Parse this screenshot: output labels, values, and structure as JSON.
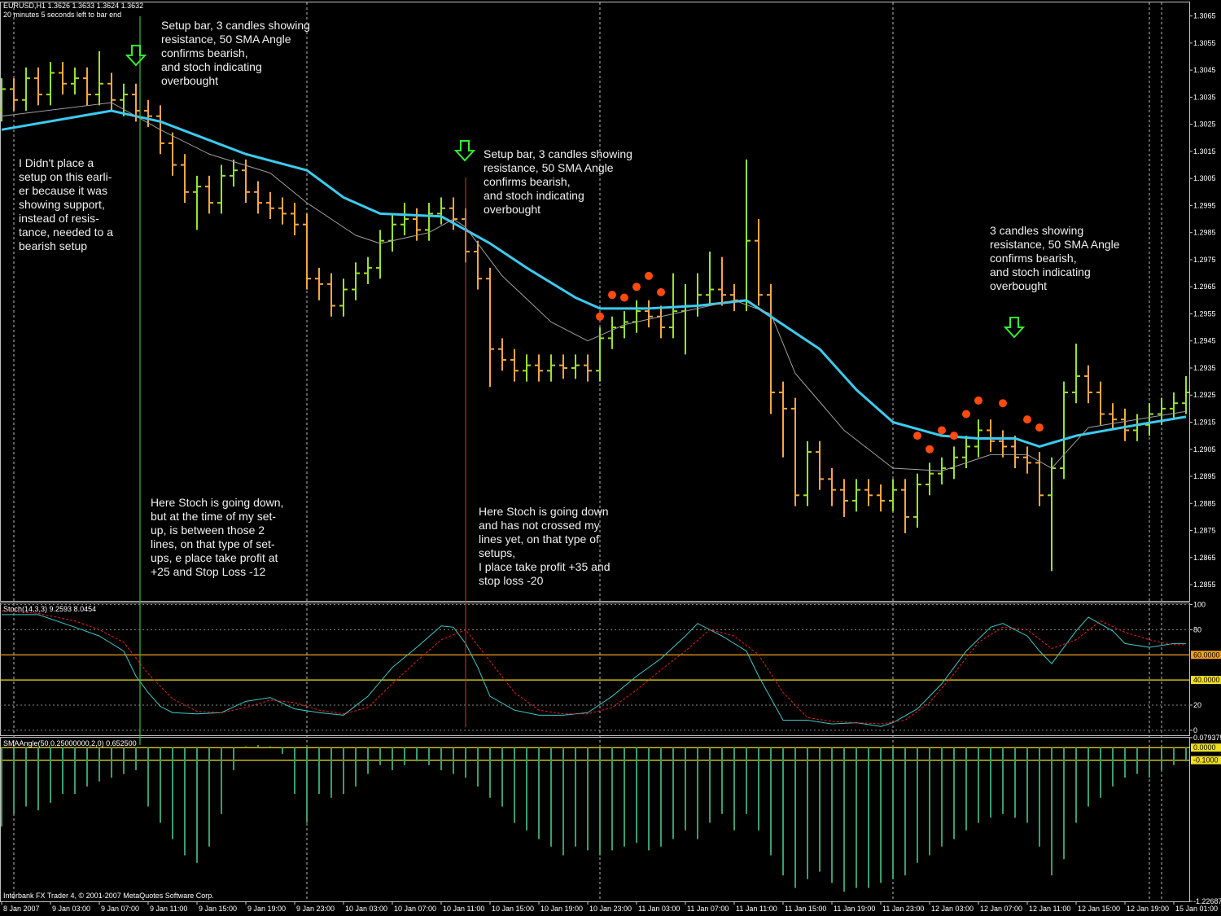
{
  "header": {
    "symbol_line": "EURUSD,H1  1.3626 1.3633 1.3624 1.3632",
    "timer": "20 minutes 5 seconds left to bar end"
  },
  "footer": "Interbank FX Trader 4, © 2001-2007 MetaQuotes Software Corp.",
  "annotations": [
    {
      "lines": [
        "Setup bar, 3 candles showing",
        "resistance, 50 SMA Angle",
        "confirms bearish,",
        "and stoch indicating",
        "overbought"
      ]
    },
    {
      "lines": [
        "I Didn't place a",
        "setup on this earli-",
        "er because it was",
        "showing support,",
        "instead of resis-",
        "tance, needed to a",
        "bearish setup"
      ]
    },
    {
      "lines": [
        "Setup bar, 3 candles showing",
        "resistance, 50 SMA Angle",
        "confirms bearish,",
        "and stoch indicating",
        "overbought"
      ]
    },
    {
      "lines": [
        " 3 candles showing",
        " resistance, 50 SMA Angle",
        "confirms bearish,",
        "and stoch indicating",
        "overbought"
      ]
    },
    {
      "lines": [
        "Here Stoch is going down,",
        "but at the time of my set-",
        "up, is between those 2",
        "lines, on that type of set-",
        "ups, e place take profit at",
        "+25 and Stop Loss -12"
      ]
    },
    {
      "lines": [
        "Here Stoch is going down",
        "and has not crossed my",
        "lines yet, on that type of",
        "setups,",
        "I place take profit +35 and",
        "stop loss -20"
      ]
    }
  ],
  "chart_data": [
    {
      "type": "ohlc",
      "up_color": "#9be22a",
      "down_color": "#f5a742",
      "categories": [
        "8 Jan 2007",
        null,
        null,
        null,
        "9 Jan 03:00",
        null,
        null,
        null,
        "9 Jan 07:00",
        null,
        null,
        null,
        "9 Jan 11:00",
        null,
        null,
        null,
        "9 Jan 15:00",
        null,
        null,
        null,
        "9 Jan 19:00",
        null,
        null,
        null,
        "9 Jan 23:00",
        null,
        null,
        null,
        "10 Jan 03:00",
        null,
        null,
        null,
        "10 Jan 07:00",
        null,
        null,
        null,
        "10 Jan 11:00",
        null,
        null,
        null,
        "10 Jan 15:00",
        null,
        null,
        null,
        "10 Jan 19:00",
        null,
        null,
        null,
        "10 Jan 23:00",
        null,
        null,
        null,
        "11 Jan 03:00",
        null,
        null,
        null,
        "11 Jan 07:00",
        null,
        null,
        null,
        "11 Jan 11:00",
        null,
        null,
        null,
        "11 Jan 15:00",
        null,
        null,
        null,
        "11 Jan 19:00",
        null,
        null,
        null,
        "11 Jan 23:00",
        null,
        null,
        null,
        "12 Jan 03:00",
        null,
        null,
        null,
        "12 Jan 07:00",
        null,
        null,
        null,
        "12 Jan 11:00",
        null,
        null,
        null,
        "12 Jan 15:00",
        null,
        null,
        null,
        "12 Jan 19:00",
        null,
        null,
        null,
        "15 Jan 01:00",
        null
      ],
      "open": [
        1.303,
        1.3038,
        1.3034,
        1.3042,
        1.3036,
        1.3044,
        1.304,
        1.3042,
        1.3036,
        1.304,
        1.3034,
        1.3036,
        1.303,
        1.3028,
        1.3018,
        1.301,
        1.3,
        1.3002,
        1.2996,
        1.3006,
        1.3008,
        1.3,
        1.2996,
        1.2994,
        1.2992,
        1.2988,
        1.2968,
        1.2966,
        1.2958,
        1.2964,
        1.297,
        1.2972,
        1.2982,
        1.2988,
        1.299,
        1.2986,
        1.2992,
        1.2994,
        1.299,
        1.2978,
        1.2968,
        1.2942,
        1.2938,
        1.2934,
        1.2936,
        1.2934,
        1.2936,
        1.2935,
        1.2936,
        1.2934,
        1.2946,
        1.295,
        1.2952,
        1.2956,
        1.2954,
        1.295,
        1.2956,
        1.2958,
        1.2962,
        1.2964,
        1.2962,
        1.296,
        1.2982,
        1.2962,
        1.2926,
        1.292,
        1.2888,
        1.2904,
        1.2894,
        1.289,
        1.2886,
        1.289,
        1.2888,
        1.2886,
        1.289,
        1.288,
        1.2892,
        1.2896,
        1.2898,
        1.2902,
        1.2906,
        1.2912,
        1.2908,
        1.2906,
        1.2902,
        1.29,
        1.2888,
        1.2898,
        1.2926,
        1.2932,
        1.2926,
        1.2918,
        1.2916,
        1.2912,
        1.2914,
        1.2918,
        1.292,
        1.2922
      ],
      "high": [
        1.3042,
        1.3042,
        1.3046,
        1.3046,
        1.3048,
        1.3048,
        1.3046,
        1.3046,
        1.3052,
        1.3044,
        1.304,
        1.304,
        1.3034,
        1.3032,
        1.3022,
        1.3014,
        1.3006,
        1.3006,
        1.301,
        1.3012,
        1.3012,
        1.3004,
        1.3,
        1.2998,
        1.2996,
        1.2992,
        1.2972,
        1.297,
        1.2968,
        1.2974,
        1.2976,
        1.2986,
        1.2992,
        1.2996,
        1.2994,
        1.2996,
        1.2998,
        1.2998,
        1.2994,
        1.2982,
        1.2972,
        1.2946,
        1.2942,
        1.294,
        1.294,
        1.294,
        1.294,
        1.294,
        1.294,
        1.295,
        1.2954,
        1.2956,
        1.296,
        1.296,
        1.2958,
        1.297,
        1.2966,
        1.297,
        1.2978,
        1.2976,
        1.2966,
        1.3012,
        1.299,
        1.2966,
        1.293,
        1.2924,
        1.2908,
        1.2908,
        1.2898,
        1.2894,
        1.2894,
        1.2894,
        1.2892,
        1.2894,
        1.2894,
        1.2896,
        1.29,
        1.2902,
        1.2906,
        1.291,
        1.2916,
        1.2916,
        1.2912,
        1.291,
        1.2906,
        1.2904,
        1.2902,
        1.293,
        1.2944,
        1.2936,
        1.293,
        1.2922,
        1.292,
        1.2918,
        1.2922,
        1.2924,
        1.2926,
        1.2932
      ],
      "low": [
        1.3026,
        1.303,
        1.303,
        1.3032,
        1.3032,
        1.3036,
        1.3036,
        1.3032,
        1.3032,
        1.303,
        1.3028,
        1.3026,
        1.3024,
        1.3014,
        1.3006,
        1.2996,
        1.2986,
        1.2992,
        1.2992,
        1.3002,
        1.2996,
        1.2992,
        1.299,
        1.2988,
        1.2984,
        1.2964,
        1.296,
        1.2954,
        1.2954,
        1.296,
        1.2966,
        1.2968,
        1.2978,
        1.2984,
        1.2982,
        1.2982,
        1.2988,
        1.2986,
        1.2974,
        1.2964,
        1.2928,
        1.2934,
        1.293,
        1.293,
        1.293,
        1.293,
        1.2931,
        1.2931,
        1.293,
        1.293,
        1.2942,
        1.2946,
        1.2948,
        1.295,
        1.2946,
        1.2946,
        1.294,
        1.2954,
        1.2958,
        1.2958,
        1.2956,
        1.2956,
        1.2958,
        1.2918,
        1.2902,
        1.2884,
        1.2884,
        1.289,
        1.2884,
        1.288,
        1.2882,
        1.2884,
        1.2882,
        1.2882,
        1.2874,
        1.2876,
        1.2888,
        1.2892,
        1.2894,
        1.2898,
        1.2902,
        1.2904,
        1.2902,
        1.2898,
        1.2896,
        1.2884,
        1.286,
        1.2894,
        1.2922,
        1.2922,
        1.2914,
        1.2912,
        1.2908,
        1.2908,
        1.291,
        1.2914,
        1.2916,
        1.2918
      ],
      "close": [
        1.3038,
        1.3034,
        1.3042,
        1.3036,
        1.3044,
        1.304,
        1.3042,
        1.3036,
        1.304,
        1.3034,
        1.3036,
        1.303,
        1.3028,
        1.3018,
        1.301,
        1.3,
        1.3002,
        1.2996,
        1.3006,
        1.3008,
        1.3,
        1.2996,
        1.2994,
        1.2992,
        1.2988,
        1.2968,
        1.2966,
        1.2958,
        1.2964,
        1.297,
        1.2972,
        1.2982,
        1.2988,
        1.299,
        1.2986,
        1.2992,
        1.2994,
        1.299,
        1.2978,
        1.2968,
        1.2942,
        1.2938,
        1.2934,
        1.2936,
        1.2934,
        1.2936,
        1.2935,
        1.2936,
        1.2934,
        1.2946,
        1.295,
        1.2952,
        1.2956,
        1.2954,
        1.295,
        1.2956,
        1.2958,
        1.2962,
        1.2964,
        1.2962,
        1.296,
        1.2982,
        1.2962,
        1.2926,
        1.292,
        1.2888,
        1.2904,
        1.2894,
        1.289,
        1.2886,
        1.289,
        1.2888,
        1.2886,
        1.289,
        1.288,
        1.2892,
        1.2896,
        1.2898,
        1.2902,
        1.2906,
        1.2912,
        1.2908,
        1.2906,
        1.2902,
        1.29,
        1.2888,
        1.2898,
        1.2926,
        1.2932,
        1.2926,
        1.2918,
        1.2916,
        1.2912,
        1.2914,
        1.2918,
        1.292,
        1.2922,
        1.2926
      ],
      "lines": [
        {
          "color": "#3ccbf0",
          "width": 3,
          "x": [
            0,
            9,
            13,
            20,
            25,
            28,
            31,
            36,
            40,
            43,
            47,
            49,
            53,
            57,
            61,
            63,
            67,
            70,
            73,
            77,
            80,
            83,
            85,
            88,
            93,
            97
          ],
          "values": [
            1.3023,
            1.303,
            1.3026,
            1.3014,
            1.3008,
            1.2998,
            1.2992,
            1.2991,
            1.2981,
            1.2972,
            1.2961,
            1.2957,
            1.2957,
            1.2958,
            1.296,
            1.2954,
            1.2942,
            1.2927,
            1.2915,
            1.291,
            1.2909,
            1.2909,
            1.2906,
            1.291,
            1.2914,
            1.2917
          ]
        },
        {
          "color": "#a0a0a0",
          "width": 1,
          "x": [
            0,
            9,
            13,
            17,
            22,
            25,
            29,
            31,
            35,
            37,
            38,
            41,
            45,
            48,
            51,
            55,
            60,
            63,
            65,
            69,
            73,
            77,
            81,
            84,
            86,
            89,
            93,
            97
          ],
          "values": [
            1.3028,
            1.3033,
            1.3023,
            1.3014,
            1.3007,
            1.2996,
            1.2984,
            1.2981,
            1.2985,
            1.299,
            1.2987,
            1.2969,
            1.2952,
            1.2945,
            1.2951,
            1.2955,
            1.296,
            1.2955,
            1.2933,
            1.2912,
            1.2898,
            1.2897,
            1.2903,
            1.2903,
            1.2898,
            1.2913,
            1.2916,
            1.2919
          ]
        }
      ],
      "markers": {
        "color": "#ff4a10",
        "x": [
          49,
          50,
          51,
          52,
          53,
          54,
          75,
          76,
          77,
          78,
          79,
          80,
          82,
          84,
          85
        ],
        "values": [
          1.2954,
          1.2962,
          1.2961,
          1.2965,
          1.2969,
          1.2963,
          1.291,
          1.2905,
          1.2912,
          1.291,
          1.2918,
          1.2923,
          1.2922,
          1.2916,
          1.2913
        ]
      },
      "ylim": [
        1.2849,
        1.307
      ],
      "yticks": [
        1.3065,
        1.3055,
        1.3045,
        1.3035,
        1.3025,
        1.3015,
        1.3005,
        1.2995,
        1.2985,
        1.2975,
        1.2965,
        1.2955,
        1.2945,
        1.2935,
        1.2925,
        1.2915,
        1.2905,
        1.2895,
        1.2885,
        1.2875,
        1.2865,
        1.2855
      ]
    },
    {
      "type": "line",
      "title": "Stoch(14,3,3) 9.2593 8.0454",
      "series": [
        {
          "color": "#40c8c8",
          "dash": false,
          "x": [
            0,
            3,
            6,
            8,
            10,
            11,
            12,
            13,
            14,
            16,
            18,
            20,
            22,
            24,
            26,
            28,
            30,
            32,
            34,
            36,
            37,
            38,
            39,
            40,
            42,
            44,
            46,
            48,
            50,
            52,
            54,
            56,
            57,
            59,
            61,
            62,
            64,
            66,
            68,
            70,
            72,
            73,
            75,
            77,
            79,
            81,
            82,
            84,
            85,
            86,
            88,
            89,
            91,
            92,
            94,
            96,
            97
          ],
          "values": [
            92,
            92,
            82,
            75,
            63,
            43,
            30,
            19,
            14,
            13,
            14,
            23,
            26,
            17,
            14,
            12,
            27,
            50,
            66,
            83,
            82,
            69,
            50,
            27,
            16,
            12,
            12,
            14,
            27,
            43,
            57,
            75,
            85,
            75,
            63,
            43,
            8,
            8,
            5,
            6,
            3,
            6,
            17,
            37,
            63,
            82,
            85,
            75,
            63,
            53,
            79,
            90,
            79,
            69,
            66,
            69,
            69
          ]
        },
        {
          "color": "#e02020",
          "dash": true,
          "x": [
            0,
            3,
            6,
            8,
            10,
            12,
            14,
            16,
            18,
            20,
            22,
            24,
            26,
            28,
            30,
            32,
            34,
            36,
            38,
            40,
            42,
            44,
            46,
            48,
            50,
            52,
            54,
            56,
            58,
            60,
            62,
            64,
            66,
            68,
            70,
            72,
            74,
            76,
            78,
            80,
            82,
            84,
            86,
            88,
            90,
            92,
            94,
            96,
            97
          ],
          "values": [
            95,
            93,
            87,
            80,
            70,
            45,
            25,
            15,
            14,
            18,
            24,
            22,
            16,
            13,
            18,
            37,
            55,
            72,
            80,
            55,
            30,
            16,
            13,
            13,
            18,
            32,
            48,
            63,
            80,
            75,
            60,
            30,
            10,
            7,
            6,
            5,
            8,
            22,
            45,
            70,
            82,
            80,
            65,
            72,
            87,
            78,
            72,
            68,
            68
          ]
        }
      ],
      "levels": [
        {
          "value": 60,
          "label": "60.0000",
          "color": "#f0a020"
        },
        {
          "value": 40,
          "label": "40.0000",
          "color": "#f0e020"
        }
      ],
      "ylim": [
        -4,
        101
      ],
      "yticks": [
        0,
        20,
        80,
        100
      ],
      "grid": true
    },
    {
      "type": "bar",
      "title": "SMAAngle(50,0.25000000,2,0) 0.652500",
      "color": "#3a9e6e",
      "values": [
        -0.63,
        -0.53,
        -0.47,
        -0.5,
        -0.44,
        -0.37,
        -0.37,
        -0.31,
        -0.27,
        -0.24,
        -0.21,
        -0.18,
        -0.47,
        -0.6,
        -0.73,
        -0.86,
        -0.92,
        -0.79,
        -0.53,
        -0.18,
        0.01,
        0.02,
        0.01,
        -0.05,
        -0.37,
        -0.6,
        -0.37,
        -0.4,
        -0.37,
        -0.31,
        -0.21,
        -0.14,
        -0.18,
        -0.14,
        -0.11,
        -0.14,
        -0.18,
        -0.21,
        -0.24,
        -0.31,
        -0.4,
        -0.47,
        -0.6,
        -0.66,
        -0.73,
        -0.79,
        -0.86,
        -0.79,
        -0.82,
        -0.86,
        -0.82,
        -0.79,
        -0.76,
        -0.82,
        -0.79,
        -0.73,
        -0.66,
        -0.73,
        -0.6,
        -0.53,
        -0.66,
        -0.53,
        -0.66,
        -0.86,
        -1.02,
        -1.12,
        -1.05,
        -0.99,
        -1.08,
        -1.15,
        -1.12,
        -1.12,
        -1.08,
        -1.05,
        -1.02,
        -0.92,
        -0.86,
        -0.79,
        -0.73,
        -0.66,
        -0.6,
        -0.56,
        -0.53,
        -0.56,
        -0.6,
        -0.79,
        -1.02,
        -0.89,
        -0.6,
        -0.47,
        -0.4,
        -0.31,
        -0.24,
        -0.21,
        -0.24,
        -0.18,
        -0.14,
        -0.11
      ],
      "levels": [
        {
          "value": 0,
          "label": "0.0000",
          "color": "#f0e020"
        },
        {
          "value": -0.1,
          "label": "-0.1000",
          "color": "#f0e020"
        }
      ],
      "ylim": [
        -1.22687,
        0.079375
      ],
      "yticks": [
        0.079375,
        -1.22687
      ],
      "grid": false
    }
  ]
}
